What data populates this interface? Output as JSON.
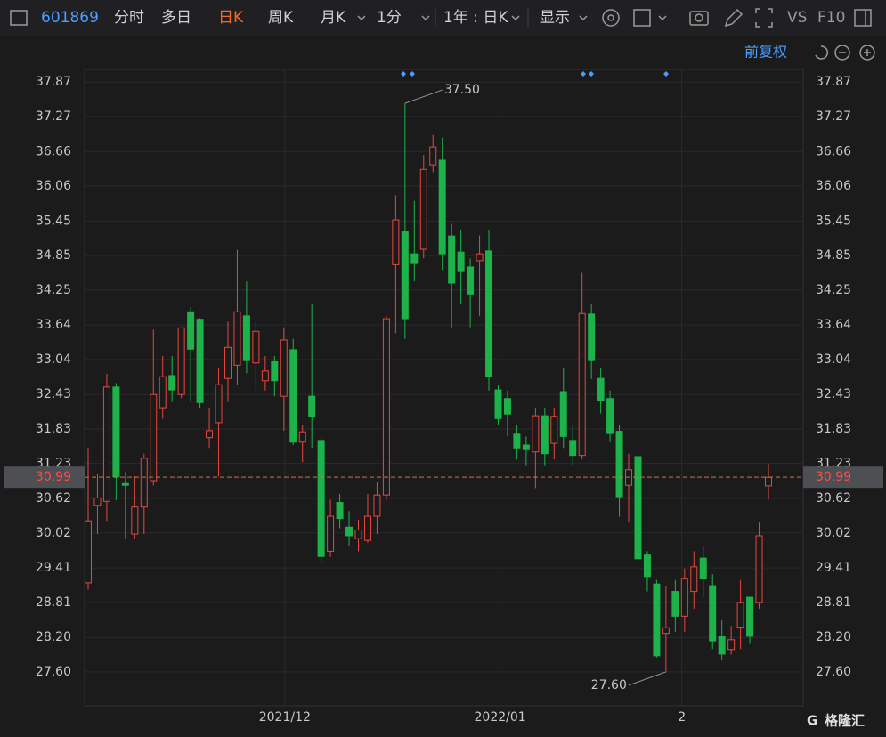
{
  "toolbar": {
    "code": "601869",
    "tabs": [
      "分时",
      "多日",
      "日K",
      "周K",
      "月K",
      "1分"
    ],
    "range": "1年 : 日K",
    "display": "显示",
    "vs": "VS",
    "f10": "F10",
    "adjust": "前复权"
  },
  "logo": "格隆汇",
  "chart_data": {
    "type": "candlestick",
    "up_color": "#e8473f",
    "down_color": "#1db34a",
    "grid": true,
    "categories": [
      null,
      null,
      null,
      null,
      null,
      null,
      null,
      null,
      null,
      null,
      null,
      null,
      null,
      null,
      null,
      null,
      null,
      null,
      null,
      null,
      null,
      null,
      null,
      null,
      null,
      null,
      null,
      null,
      null,
      null,
      null,
      null,
      null,
      null,
      null,
      null,
      null,
      null,
      null,
      null,
      null,
      null,
      null,
      null,
      null,
      null,
      null,
      null,
      null,
      null,
      null,
      null,
      null,
      null,
      null,
      null,
      null,
      null,
      null,
      null,
      null,
      null,
      null,
      null,
      null,
      null,
      null,
      null,
      null,
      null,
      null,
      null,
      null,
      null
    ],
    "open": [
      29.15,
      30.5,
      30.57,
      32.56,
      30.88,
      30.0,
      30.47,
      30.93,
      32.2,
      32.76,
      32.43,
      33.87,
      33.74,
      31.68,
      31.94,
      32.71,
      32.94,
      33.8,
      32.98,
      32.67,
      33.0,
      32.4,
      33.21,
      31.6,
      32.4,
      31.63,
      29.7,
      30.55,
      30.12,
      29.92,
      29.89,
      30.31,
      30.68,
      34.69,
      35.27,
      34.88,
      34.96,
      36.43,
      36.51,
      35.19,
      34.91,
      34.65,
      34.76,
      34.93,
      32.51,
      32.36,
      31.74,
      31.55,
      31.43,
      32.06,
      31.58,
      32.48,
      31.63,
      31.37,
      33.83,
      32.71,
      32.36,
      31.79,
      30.85,
      31.35,
      29.65,
      29.13,
      28.27,
      29.0,
      28.57,
      29.0,
      29.58,
      29.1,
      28.22,
      27.99,
      28.38,
      28.9,
      28.81,
      30.84
    ],
    "high": [
      31.5,
      31.05,
      32.79,
      32.63,
      31.08,
      31.01,
      31.4,
      33.56,
      33.1,
      33.1,
      33.6,
      33.95,
      33.76,
      32.2,
      32.9,
      33.7,
      34.95,
      34.4,
      33.7,
      33.1,
      33.1,
      33.6,
      33.4,
      31.9,
      34.0,
      31.7,
      30.6,
      30.7,
      30.4,
      30.25,
      30.7,
      30.9,
      33.8,
      35.9,
      37.5,
      35.8,
      36.6,
      36.95,
      36.9,
      35.4,
      35.3,
      34.8,
      35.2,
      35.3,
      32.6,
      32.5,
      31.9,
      31.7,
      32.2,
      32.2,
      32.2,
      32.9,
      31.9,
      34.55,
      34.0,
      32.9,
      32.5,
      31.9,
      31.4,
      31.4,
      29.7,
      29.2,
      29.1,
      29.2,
      29.4,
      29.7,
      29.8,
      29.3,
      28.5,
      28.4,
      29.2,
      28.9,
      30.2,
      31.23
    ],
    "low": [
      29.03,
      30.0,
      30.23,
      30.59,
      29.92,
      29.92,
      30.0,
      30.85,
      32.01,
      32.3,
      32.37,
      32.3,
      32.2,
      31.5,
      31.0,
      32.3,
      32.6,
      32.8,
      32.5,
      32.5,
      32.4,
      31.8,
      31.55,
      31.25,
      31.5,
      29.5,
      29.6,
      30.1,
      29.8,
      29.7,
      29.85,
      30.0,
      30.6,
      33.5,
      33.4,
      34.4,
      34.8,
      36.3,
      34.6,
      33.6,
      34.0,
      33.6,
      33.8,
      32.5,
      31.9,
      31.7,
      31.3,
      31.2,
      30.8,
      31.2,
      31.3,
      31.5,
      31.2,
      31.3,
      32.7,
      32.1,
      31.6,
      30.3,
      30.2,
      29.5,
      29.0,
      27.85,
      27.6,
      28.3,
      28.3,
      28.7,
      28.9,
      28.0,
      27.8,
      27.9,
      28.0,
      28.1,
      28.7,
      30.6
    ],
    "close": [
      30.23,
      30.63,
      32.56,
      31.0,
      30.85,
      30.47,
      31.32,
      32.43,
      32.74,
      32.51,
      33.59,
      33.22,
      32.29,
      31.8,
      32.6,
      33.25,
      33.87,
      33.02,
      33.53,
      32.84,
      32.67,
      33.38,
      31.6,
      31.78,
      32.05,
      29.61,
      30.31,
      30.27,
      29.97,
      30.07,
      30.31,
      30.68,
      33.75,
      35.47,
      33.75,
      34.71,
      36.35,
      36.74,
      34.88,
      34.37,
      34.57,
      34.18,
      34.88,
      32.74,
      32.01,
      32.09,
      31.5,
      31.47,
      32.06,
      31.4,
      32.05,
      31.7,
      31.37,
      33.84,
      33.02,
      32.32,
      31.75,
      30.65,
      31.12,
      29.57,
      29.26,
      27.88,
      28.37,
      28.57,
      29.23,
      29.43,
      29.23,
      28.14,
      27.91,
      28.16,
      28.81,
      28.22,
      29.97,
      30.99
    ],
    "ylim": [
      27.01,
      38.09
    ],
    "yticks": [
      37.87,
      37.27,
      36.66,
      36.06,
      35.45,
      34.85,
      34.25,
      33.64,
      33.04,
      32.43,
      31.83,
      31.23,
      30.62,
      30.02,
      29.41,
      28.81,
      {
        "value": 28.2,
        "label": "28.20"
      },
      {
        "value": 27.6,
        "label": "27.60"
      }
    ],
    "xticks": [
      {
        "value": 21.1,
        "label": "2021/12"
      },
      {
        "value": 44.2,
        "label": "2022/01"
      },
      {
        "value": 63.7,
        "label": "2"
      }
    ],
    "last_price": {
      "value": 30.99,
      "label": "30.99"
    },
    "annotations": [
      {
        "value": 37.5,
        "label": "37.50",
        "index": 34
      },
      {
        "value": 27.6,
        "label": "27.60",
        "index": 62
      }
    ]
  }
}
